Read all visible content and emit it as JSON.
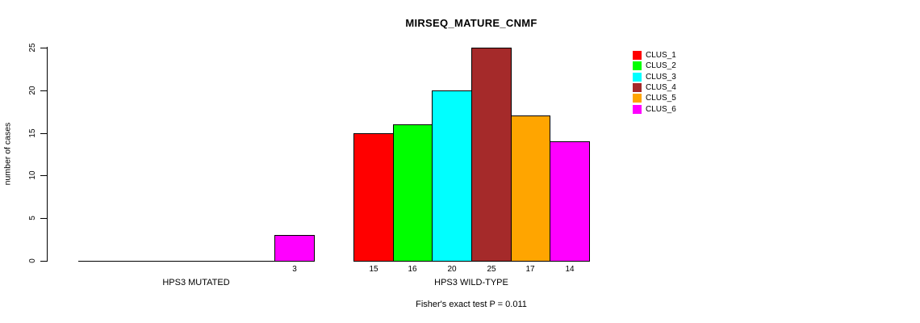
{
  "chart_data": {
    "type": "bar",
    "title": "MIRSEQ_MATURE_CNMF",
    "ylabel": "number of cases",
    "xlabel": "",
    "annotation": "Fisher's exact test P = 0.011",
    "categories": [
      "HPS3 MUTATED",
      "HPS3 WILD-TYPE"
    ],
    "groups": [
      {
        "label": "HPS3 MUTATED",
        "values": [
          0,
          0,
          0,
          0,
          0,
          3
        ]
      },
      {
        "label": "HPS3 WILD-TYPE",
        "values": [
          15,
          16,
          20,
          25,
          17,
          14
        ]
      }
    ],
    "series": [
      {
        "name": "CLUS_1",
        "color": "#FF0000"
      },
      {
        "name": "CLUS_2",
        "color": "#00FF00"
      },
      {
        "name": "CLUS_3",
        "color": "#00FFFF"
      },
      {
        "name": "CLUS_4",
        "color": "#A52A2A"
      },
      {
        "name": "CLUS_5",
        "color": "#FFA500"
      },
      {
        "name": "CLUS_6",
        "color": "#FF00FF"
      }
    ],
    "yticks": [
      0,
      5,
      10,
      15,
      20,
      25
    ],
    "ylim": [
      0,
      25
    ],
    "bar_value_labels_shown_for_nonzero_bars": true,
    "legend_position": "right",
    "grid": false,
    "background_color": "#FFFFFF",
    "axis_color": "#000000"
  }
}
